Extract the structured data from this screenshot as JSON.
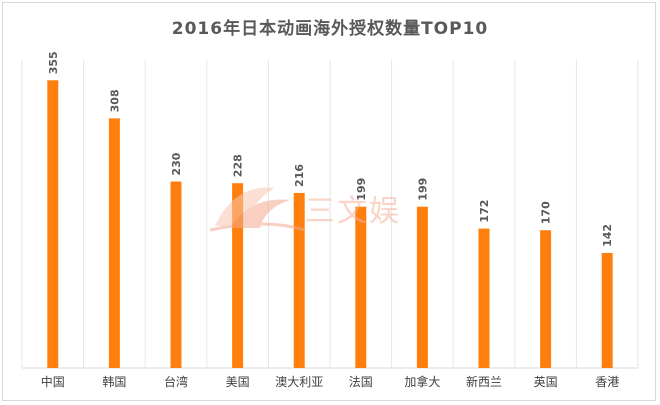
{
  "chart_data": {
    "type": "bar",
    "title": "2016年日本动画海外授权数量TOP10",
    "categories": [
      "中国",
      "韩国",
      "台湾",
      "美国",
      "澳大利亚",
      "法国",
      "加拿大",
      "新西兰",
      "英国",
      "香港"
    ],
    "values": [
      355,
      308,
      230,
      228,
      216,
      199,
      199,
      172,
      170,
      142
    ],
    "ylim": [
      0,
      380
    ],
    "grid": "vertical separators",
    "bar_color": "#ff7f0e",
    "data_labels": true
  },
  "watermark": {
    "text": "三文娱",
    "color": "#f7b19a"
  }
}
